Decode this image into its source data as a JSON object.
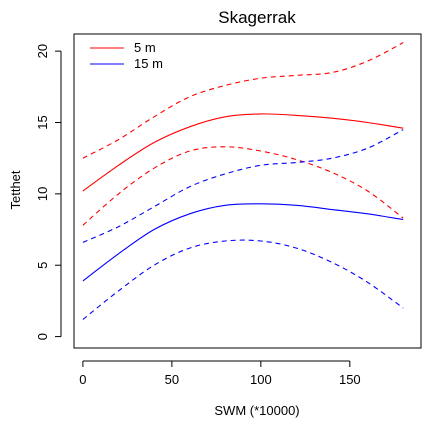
{
  "chart_data": {
    "type": "line",
    "title": "Skagerrak",
    "xlabel": "SWM (*10000)",
    "ylabel": "Tetthet",
    "xlim": [
      -5,
      190
    ],
    "ylim": [
      -0.8,
      21.2
    ],
    "x_ticks": [
      0,
      50,
      100,
      150
    ],
    "y_ticks": [
      0,
      5,
      10,
      15,
      20
    ],
    "grid": false,
    "legend_position": "top-left",
    "colors": {
      "red": "#ff0000",
      "blue": "#0000ff"
    },
    "series": [
      {
        "name": "5 m",
        "role": "fit",
        "color": "#ff0000",
        "dash": "solid",
        "show_in_legend": true,
        "x": [
          0,
          20,
          40,
          60,
          80,
          100,
          120,
          140,
          160,
          180
        ],
        "y": [
          10.2,
          12.0,
          13.6,
          14.7,
          15.4,
          15.6,
          15.5,
          15.3,
          15.0,
          14.6
        ]
      },
      {
        "name": "",
        "role": "upper-ci",
        "color": "#ff0000",
        "dash": "dashed",
        "show_in_legend": false,
        "x": [
          0,
          20,
          40,
          60,
          80,
          100,
          120,
          140,
          160,
          180
        ],
        "y": [
          12.5,
          13.8,
          15.4,
          16.8,
          17.6,
          18.1,
          18.3,
          18.5,
          19.3,
          20.6
        ]
      },
      {
        "name": "",
        "role": "lower-ci",
        "color": "#ff0000",
        "dash": "dashed",
        "show_in_legend": false,
        "x": [
          0,
          20,
          40,
          60,
          80,
          100,
          120,
          140,
          160,
          180
        ],
        "y": [
          7.8,
          10.0,
          11.8,
          13.0,
          13.3,
          13.0,
          12.4,
          11.5,
          10.2,
          8.3
        ]
      },
      {
        "name": "15 m",
        "role": "fit",
        "color": "#0000ff",
        "dash": "solid",
        "show_in_legend": true,
        "x": [
          0,
          20,
          40,
          60,
          80,
          100,
          120,
          140,
          160,
          180
        ],
        "y": [
          3.9,
          5.8,
          7.5,
          8.6,
          9.2,
          9.3,
          9.2,
          8.9,
          8.6,
          8.2
        ]
      },
      {
        "name": "",
        "role": "upper-ci",
        "color": "#0000ff",
        "dash": "dashed",
        "show_in_legend": false,
        "x": [
          0,
          20,
          40,
          60,
          80,
          100,
          120,
          140,
          160,
          180
        ],
        "y": [
          6.6,
          7.7,
          9.1,
          10.5,
          11.4,
          12.0,
          12.2,
          12.5,
          13.2,
          14.5
        ]
      },
      {
        "name": "",
        "role": "lower-ci",
        "color": "#0000ff",
        "dash": "dashed",
        "show_in_legend": false,
        "x": [
          0,
          20,
          40,
          60,
          80,
          100,
          120,
          140,
          160,
          180
        ],
        "y": [
          1.2,
          3.2,
          5.0,
          6.2,
          6.7,
          6.7,
          6.2,
          5.2,
          3.8,
          2.0
        ]
      }
    ]
  }
}
